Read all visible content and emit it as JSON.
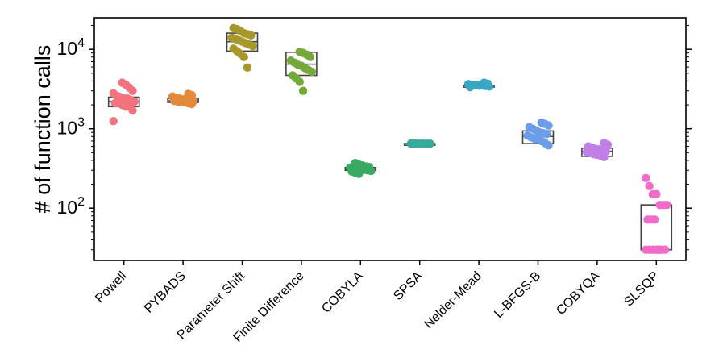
{
  "chart_data": {
    "type": "box-strip",
    "title": "",
    "xlabel": "",
    "ylabel": "# of function calls",
    "yscale": "log",
    "ylim": [
      22,
      25000
    ],
    "yticks": [
      {
        "value": 100,
        "base": "10",
        "exp": "2"
      },
      {
        "value": 1000,
        "base": "10",
        "exp": "3"
      },
      {
        "value": 10000,
        "base": "10",
        "exp": "4"
      }
    ],
    "grid": false,
    "categories": [
      "Powell",
      "PYBADS",
      "Parameter Shift",
      "Finite Difference",
      "COBYLA",
      "SPSA",
      "Nelder-Mead",
      "L-BFGS-B",
      "COBYQA",
      "SLSQP"
    ],
    "series": [
      {
        "name": "Powell",
        "color": "#f2727e",
        "box": {
          "q1": 1900,
          "median": 2200,
          "q3": 2500
        },
        "values": [
          1250,
          1700,
          1900,
          2000,
          2100,
          2200,
          2300,
          2400,
          2500,
          2600,
          2800,
          3000,
          3300,
          3600,
          3800,
          2100,
          2400,
          1900
        ]
      },
      {
        "name": "PYBADS",
        "color": "#e2893b",
        "box": {
          "q1": 2150,
          "median": 2250,
          "q3": 2400
        },
        "values": [
          2050,
          2100,
          2150,
          2200,
          2250,
          2300,
          2350,
          2400,
          2450,
          2550,
          2650,
          2750,
          2200,
          2300,
          2250
        ]
      },
      {
        "name": "Parameter Shift",
        "color": "#a8982c",
        "box": {
          "q1": 9500,
          "median": 12500,
          "q3": 16000
        },
        "values": [
          5900,
          8000,
          8800,
          9500,
          10200,
          11000,
          12000,
          12500,
          13000,
          14000,
          15000,
          15500,
          16000,
          17000,
          18000,
          18500,
          11500,
          13500
        ]
      },
      {
        "name": "Finite Difference",
        "color": "#74a838",
        "box": {
          "q1": 4700,
          "median": 6500,
          "q3": 9200
        },
        "values": [
          3000,
          3900,
          4300,
          4700,
          5200,
          5800,
          6400,
          6800,
          7200,
          8000,
          8600,
          9000,
          9300,
          6200,
          5500
        ]
      },
      {
        "name": "COBYLA",
        "color": "#3aaa63",
        "box": {
          "q1": 300,
          "median": 312,
          "q3": 325
        },
        "values": [
          270,
          280,
          290,
          300,
          305,
          310,
          315,
          320,
          325,
          330,
          335,
          345,
          355,
          370,
          295
        ]
      },
      {
        "name": "SPSA",
        "color": "#36ab9d",
        "box": {
          "q1": 650,
          "median": 650,
          "q3": 650
        },
        "values": [
          650,
          650,
          650,
          650,
          650,
          650,
          650,
          650
        ]
      },
      {
        "name": "Nelder-Mead",
        "color": "#38a7c4",
        "box": {
          "q1": 3500,
          "median": 3500,
          "q3": 3500
        },
        "values": [
          3350,
          3400,
          3450,
          3500,
          3550,
          3600,
          3650,
          3700,
          3800,
          3500
        ]
      },
      {
        "name": "L-BFGS-B",
        "color": "#6d9ce8",
        "box": {
          "q1": 650,
          "median": 800,
          "q3": 940
        },
        "values": [
          620,
          660,
          700,
          740,
          780,
          820,
          860,
          900,
          950,
          1000,
          1050,
          1100,
          1150,
          1200,
          750,
          880
        ]
      },
      {
        "name": "COBYQA",
        "color": "#c27ee8",
        "box": {
          "q1": 450,
          "median": 520,
          "q3": 570
        },
        "values": [
          440,
          460,
          480,
          500,
          520,
          540,
          560,
          580,
          600,
          630,
          660,
          470,
          510,
          550
        ]
      },
      {
        "name": "SLSQP",
        "color": "#ef6dc8",
        "box": {
          "q1": 30,
          "median": 30,
          "q3": 110
        },
        "values": [
          30,
          30,
          30,
          30,
          30,
          30,
          30,
          30,
          72,
          72,
          72,
          110,
          110,
          110,
          150,
          150,
          190,
          240
        ]
      }
    ]
  }
}
